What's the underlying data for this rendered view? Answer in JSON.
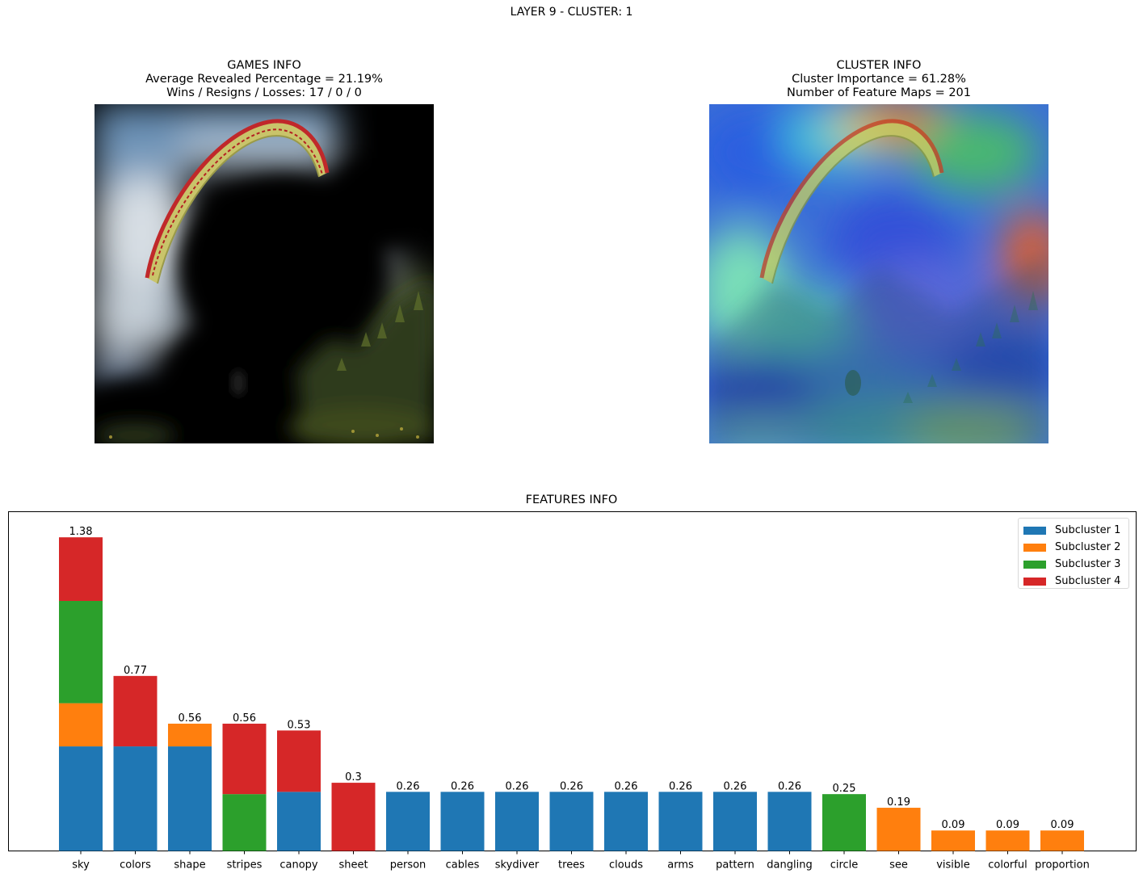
{
  "figure": {
    "suptitle": "LAYER 9 - CLUSTER: 1"
  },
  "games_info": {
    "title_line1": "GAMES INFO",
    "title_line2": "Average Revealed Percentage = 21.19%",
    "title_line3": "Wins / Resigns / Losses: 17 / 0 / 0"
  },
  "cluster_info": {
    "title_line1": "CLUSTER INFO",
    "title_line2": "Cluster Importance = 61.28%",
    "title_line3": "Number of Feature Maps = 201"
  },
  "colors": {
    "subcluster_1": "#1f77b4",
    "subcluster_2": "#ff7f0e",
    "subcluster_3": "#2ca02c",
    "subcluster_4": "#d62728"
  },
  "chart_data": {
    "type": "bar",
    "stacked": true,
    "title": "FEATURES INFO",
    "categories": [
      "sky",
      "colors",
      "shape",
      "stripes",
      "canopy",
      "sheet",
      "person",
      "cables",
      "skydiver",
      "trees",
      "clouds",
      "arms",
      "pattern",
      "dangling",
      "circle",
      "see",
      "visible",
      "colorful",
      "proportion"
    ],
    "totals_labels": [
      "1.38",
      "0.77",
      "0.56",
      "0.56",
      "0.53",
      "0.3",
      "0.26",
      "0.26",
      "0.26",
      "0.26",
      "0.26",
      "0.26",
      "0.26",
      "0.26",
      "0.25",
      "0.19",
      "0.09",
      "0.09",
      "0.09"
    ],
    "series": [
      {
        "name": "Subcluster 1",
        "values": [
          0.46,
          0.46,
          0.46,
          0,
          0.26,
          0,
          0.26,
          0.26,
          0.26,
          0.26,
          0.26,
          0.26,
          0.26,
          0.26,
          0,
          0,
          0,
          0,
          0
        ]
      },
      {
        "name": "Subcluster 2",
        "values": [
          0.19,
          0,
          0.1,
          0,
          0,
          0,
          0,
          0,
          0,
          0,
          0,
          0,
          0,
          0,
          0,
          0.19,
          0.09,
          0.09,
          0.09
        ]
      },
      {
        "name": "Subcluster 3",
        "values": [
          0.45,
          0,
          0,
          0.25,
          0,
          0,
          0,
          0,
          0,
          0,
          0,
          0,
          0,
          0,
          0.25,
          0,
          0,
          0,
          0
        ]
      },
      {
        "name": "Subcluster 4",
        "values": [
          0.28,
          0.31,
          0,
          0.31,
          0.27,
          0.3,
          0,
          0,
          0,
          0,
          0,
          0,
          0,
          0,
          0,
          0,
          0,
          0,
          0
        ]
      }
    ],
    "ylim": [
      0,
      1.45
    ],
    "y_ticks_visible": false,
    "grid": false,
    "legend_position": "top-right"
  }
}
